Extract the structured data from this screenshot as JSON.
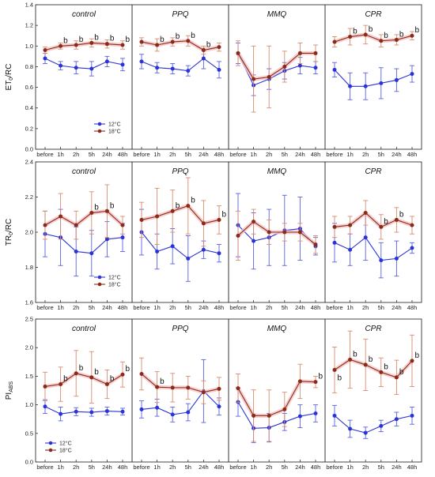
{
  "colors": {
    "cold": "#2b33d6",
    "warm": "#8b2a1a",
    "warm_err": "#d88b6e",
    "warm_halo": "#f3c2c2",
    "cold_err": "#5a61e0",
    "frame": "#333333"
  },
  "chart_data": [
    {
      "type": "line",
      "ylabel_main": "ET",
      "ylabel_sub": "0",
      "ylabel_rest": "/RC",
      "ylim": [
        0.0,
        1.4
      ],
      "yticks": [
        "0.0",
        "0.2",
        "0.4",
        "0.6",
        "0.8",
        "1.0",
        "1.2",
        "1.4"
      ],
      "categories": [
        "before",
        "1h",
        "2h",
        "5h",
        "24h",
        "48h"
      ],
      "legend_panel": 0,
      "legend": {
        "position": "bottom-right",
        "entries": [
          "12°C",
          "18°C"
        ]
      },
      "panels": [
        {
          "title": "control",
          "series": [
            {
              "name": "12°C",
              "values": [
                0.88,
                0.81,
                0.79,
                0.78,
                0.85,
                0.82
              ],
              "err": [
                0.05,
                0.04,
                0.06,
                0.07,
                0.05,
                0.06
              ]
            },
            {
              "name": "18°C",
              "values": [
                0.96,
                1.0,
                1.01,
                1.03,
                1.02,
                1.01
              ],
              "err": [
                0.03,
                0.03,
                0.04,
                0.04,
                0.04,
                0.04
              ]
            }
          ],
          "b": [
            false,
            true,
            true,
            true,
            true,
            true
          ]
        },
        {
          "title": "PPQ",
          "series": [
            {
              "name": "12°C",
              "values": [
                0.85,
                0.79,
                0.78,
                0.76,
                0.88,
                0.77
              ],
              "err": [
                0.07,
                0.05,
                0.05,
                0.05,
                0.1,
                0.08
              ]
            },
            {
              "name": "18°C",
              "values": [
                1.04,
                1.01,
                1.04,
                1.05,
                0.96,
                0.99
              ],
              "err": [
                0.04,
                0.06,
                0.04,
                0.05,
                0.04,
                0.04
              ]
            }
          ],
          "b": [
            false,
            true,
            true,
            true,
            true,
            false
          ]
        },
        {
          "title": "MMQ",
          "series": [
            {
              "name": "12°C",
              "values": [
                0.93,
                0.62,
                0.68,
                0.76,
                0.81,
                0.79
              ],
              "err": [
                0.1,
                0.1,
                0.1,
                0.08,
                0.08,
                0.06
              ]
            },
            {
              "name": "18°C",
              "values": [
                0.93,
                0.68,
                0.7,
                0.8,
                0.93,
                0.93
              ],
              "err": [
                0.12,
                0.32,
                0.3,
                0.15,
                0.1,
                0.08
              ]
            }
          ],
          "b": [
            false,
            false,
            false,
            false,
            false,
            false
          ]
        },
        {
          "title": "CPR",
          "series": [
            {
              "name": "12°C",
              "values": [
                0.77,
                0.61,
                0.61,
                0.64,
                0.67,
                0.73
              ],
              "err": [
                0.07,
                0.13,
                0.13,
                0.15,
                0.11,
                0.08
              ]
            },
            {
              "name": "18°C",
              "values": [
                1.04,
                1.09,
                1.11,
                1.05,
                1.06,
                1.1
              ],
              "err": [
                0.05,
                0.08,
                0.09,
                0.06,
                0.05,
                0.04
              ]
            }
          ],
          "b": [
            false,
            true,
            true,
            true,
            true,
            true
          ]
        }
      ]
    },
    {
      "type": "line",
      "ylabel_main": "TR",
      "ylabel_sub": "0",
      "ylabel_rest": "/RC",
      "ylim": [
        1.6,
        2.4
      ],
      "yticks": [
        "1.6",
        "1.8",
        "2.0",
        "2.2",
        "2.4"
      ],
      "categories": [
        "before",
        "1h",
        "2h",
        "5h",
        "24h",
        "48h"
      ],
      "legend_panel": 0,
      "legend": {
        "position": "bottom-right",
        "entries": [
          "12°C",
          "18°C"
        ]
      },
      "panels": [
        {
          "title": "control",
          "series": [
            {
              "name": "12°C",
              "values": [
                1.99,
                1.97,
                1.89,
                1.88,
                1.96,
                1.97
              ],
              "err": [
                0.13,
                0.16,
                0.14,
                0.13,
                0.1,
                0.08
              ]
            },
            {
              "name": "18°C",
              "values": [
                2.04,
                2.09,
                2.04,
                2.11,
                2.12,
                2.04
              ],
              "err": [
                0.08,
                0.13,
                0.08,
                0.12,
                0.15,
                0.05
              ]
            }
          ],
          "b": [
            false,
            false,
            false,
            true,
            true,
            false
          ]
        },
        {
          "title": "PPQ",
          "series": [
            {
              "name": "12°C",
              "values": [
                2.0,
                1.89,
                1.92,
                1.85,
                1.9,
                1.88
              ],
              "err": [
                0.13,
                0.1,
                0.1,
                0.13,
                0.05,
                0.05
              ]
            },
            {
              "name": "18°C",
              "values": [
                2.07,
                2.09,
                2.12,
                2.15,
                2.05,
                2.07
              ],
              "err": [
                0.1,
                0.16,
                0.12,
                0.16,
                0.13,
                0.08
              ]
            }
          ],
          "b": [
            false,
            false,
            true,
            true,
            false,
            true
          ]
        },
        {
          "title": "MMQ",
          "series": [
            {
              "name": "12°C",
              "values": [
                2.04,
                1.95,
                1.97,
                2.01,
                2.02,
                1.92
              ],
              "err": [
                0.18,
                0.16,
                0.16,
                0.2,
                0.18,
                0.05
              ]
            },
            {
              "name": "18°C",
              "values": [
                1.98,
                2.06,
                2.0,
                2.0,
                2.0,
                1.93
              ],
              "err": [
                0.14,
                0.07,
                0.07,
                0.05,
                0.05,
                0.05
              ]
            }
          ],
          "b": [
            false,
            false,
            false,
            false,
            false,
            false
          ]
        },
        {
          "title": "CPR",
          "series": [
            {
              "name": "12°C",
              "values": [
                1.94,
                1.9,
                1.97,
                1.84,
                1.85,
                1.91
              ],
              "err": [
                0.11,
                0.09,
                0.13,
                0.1,
                0.1,
                0.03
              ]
            },
            {
              "name": "18°C",
              "values": [
                2.03,
                2.04,
                2.11,
                2.03,
                2.07,
                2.04
              ],
              "err": [
                0.06,
                0.05,
                0.07,
                0.07,
                0.07,
                0.05
              ]
            }
          ],
          "b": [
            false,
            false,
            false,
            true,
            true,
            false
          ]
        }
      ]
    },
    {
      "type": "line",
      "ylabel_main": "PI",
      "ylabel_sub": "ABS",
      "ylabel_rest": "",
      "ylim": [
        0.0,
        2.5
      ],
      "yticks": [
        "0.0",
        "0.5",
        "1.0",
        "1.5",
        "2.0",
        "2.5"
      ],
      "categories": [
        "before",
        "1h",
        "2h",
        "5h",
        "24h",
        "48h"
      ],
      "legend_panel": 0,
      "legend": {
        "position": "bottom-left",
        "entries": [
          "12°C",
          "18°C"
        ]
      },
      "panels": [
        {
          "title": "control",
          "series": [
            {
              "name": "12°C",
              "values": [
                0.97,
                0.84,
                0.88,
                0.87,
                0.89,
                0.88
              ],
              "err": [
                0.12,
                0.12,
                0.07,
                0.07,
                0.07,
                0.06
              ]
            },
            {
              "name": "18°C",
              "values": [
                1.32,
                1.36,
                1.55,
                1.48,
                1.36,
                1.53
              ],
              "err": [
                0.25,
                0.3,
                0.4,
                0.45,
                0.25,
                0.22
              ]
            }
          ],
          "b": [
            false,
            true,
            true,
            true,
            true,
            true
          ]
        },
        {
          "title": "PPQ",
          "series": [
            {
              "name": "12°C",
              "values": [
                0.92,
                0.95,
                0.83,
                0.87,
                1.24,
                0.97
              ],
              "err": [
                0.15,
                0.15,
                0.13,
                0.15,
                0.55,
                0.15
              ]
            },
            {
              "name": "18°C",
              "values": [
                1.54,
                1.31,
                1.3,
                1.3,
                1.22,
                1.28
              ],
              "err": [
                0.28,
                0.27,
                0.25,
                0.2,
                0.2,
                0.2
              ]
            }
          ],
          "b": [
            false,
            true,
            false,
            false,
            false,
            false
          ]
        },
        {
          "title": "MMQ",
          "series": [
            {
              "name": "12°C",
              "values": [
                1.05,
                0.59,
                0.6,
                0.7,
                0.8,
                0.85
              ],
              "err": [
                0.25,
                0.25,
                0.25,
                0.15,
                0.2,
                0.15
              ]
            },
            {
              "name": "18°C",
              "values": [
                1.29,
                0.81,
                0.81,
                0.92,
                1.41,
                1.4
              ],
              "err": [
                0.25,
                0.45,
                0.45,
                0.3,
                0.3,
                0.1
              ]
            }
          ],
          "b": [
            false,
            false,
            false,
            false,
            false,
            true
          ]
        },
        {
          "title": "CPR",
          "series": [
            {
              "name": "12°C",
              "values": [
                0.81,
                0.58,
                0.51,
                0.63,
                0.75,
                0.81
              ],
              "err": [
                0.18,
                0.15,
                0.1,
                0.1,
                0.12,
                0.15
              ]
            },
            {
              "name": "18°C",
              "values": [
                1.61,
                1.79,
                1.7,
                1.57,
                1.48,
                1.77
              ],
              "err": [
                0.4,
                0.5,
                0.45,
                0.25,
                0.3,
                0.45
              ]
            }
          ],
          "b": [
            true,
            true,
            true,
            true,
            true,
            true
          ]
        }
      ]
    }
  ]
}
